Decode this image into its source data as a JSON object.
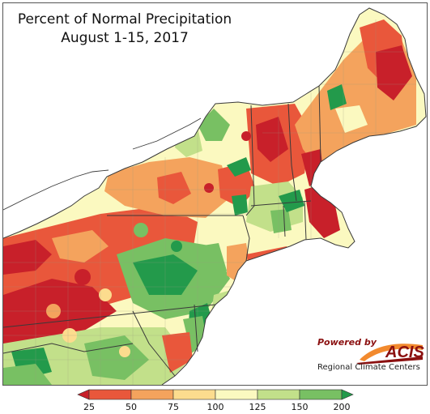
{
  "title_line1": "Percent of Normal Precipitation",
  "title_line2": "August 1-15, 2017",
  "logo": {
    "powered_by": "Powered by",
    "name": "ACIS",
    "subtitle": "Regional Climate Centers"
  },
  "legend": {
    "ticks": [
      "25",
      "50",
      "75",
      "100",
      "125",
      "150",
      "200"
    ],
    "colors": [
      "#c8202a",
      "#e9573b",
      "#f4a35d",
      "#fcdc8e",
      "#fbf9c0",
      "#c2e08a",
      "#78c063",
      "#239a4b"
    ]
  },
  "colors": {
    "water": "#ffffff",
    "land_outside": "#ffffff",
    "state_border": "#3a3a3a",
    "county_border": "#9a9a80"
  }
}
